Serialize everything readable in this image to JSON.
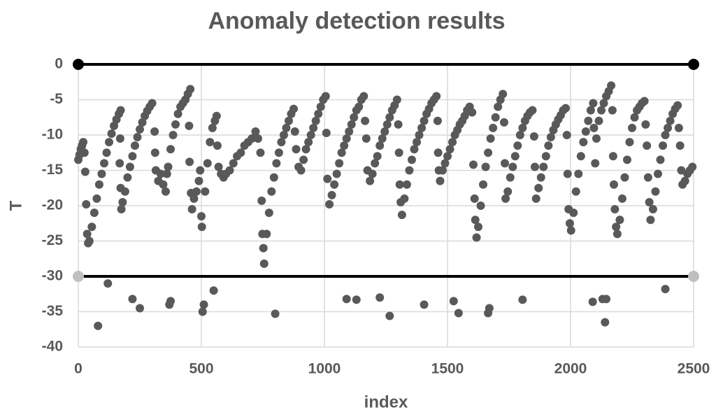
{
  "chart_data": {
    "type": "scatter",
    "title": "Anomaly detection results",
    "x_label": "index",
    "y_label": "T",
    "xlim": [
      0,
      2500
    ],
    "xticks": [
      0,
      500,
      1000,
      1500,
      2000,
      2500
    ],
    "ylim": [
      -40,
      0
    ],
    "yticks": [
      0,
      -5,
      -10,
      -15,
      -20,
      -25,
      -30,
      -35,
      -40
    ],
    "grid": true,
    "series": [
      {
        "color": "#595959",
        "mode": "markers",
        "x": [
          0,
          5,
          10,
          15,
          20,
          25,
          28,
          32,
          36,
          40,
          45,
          55,
          65,
          75,
          85,
          95,
          105,
          115,
          125,
          135,
          145,
          155,
          165,
          172,
          170,
          168,
          172,
          175,
          180,
          190,
          200,
          210,
          220,
          230,
          240,
          250,
          260,
          270,
          280,
          290,
          300,
          310,
          312,
          315,
          325,
          335,
          345,
          355,
          360,
          365,
          375,
          385,
          395,
          405,
          415,
          425,
          435,
          445,
          455,
          450,
          452,
          458,
          462,
          470,
          480,
          490,
          495,
          500,
          502,
          515,
          525,
          535,
          545,
          555,
          562,
          565,
          570,
          580,
          590,
          600,
          615,
          630,
          645,
          660,
          675,
          690,
          705,
          720,
          730,
          740,
          745,
          748,
          752,
          755,
          765,
          775,
          785,
          795,
          805,
          815,
          825,
          835,
          845,
          855,
          865,
          875,
          880,
          885,
          895,
          905,
          915,
          925,
          935,
          945,
          955,
          965,
          975,
          985,
          995,
          1005,
          1008,
          1012,
          1020,
          1030,
          1040,
          1050,
          1060,
          1070,
          1080,
          1090,
          1100,
          1110,
          1120,
          1130,
          1140,
          1150,
          1160,
          1165,
          1170,
          1175,
          1185,
          1195,
          1205,
          1215,
          1225,
          1235,
          1245,
          1255,
          1265,
          1275,
          1285,
          1295,
          1300,
          1303,
          1306,
          1310,
          1315,
          1325,
          1335,
          1345,
          1355,
          1365,
          1375,
          1385,
          1395,
          1405,
          1415,
          1425,
          1435,
          1445,
          1455,
          1460,
          1462,
          1465,
          1470,
          1480,
          1490,
          1500,
          1510,
          1520,
          1530,
          1540,
          1550,
          1560,
          1570,
          1580,
          1590,
          1600,
          1605,
          1610,
          1613,
          1618,
          1625,
          1635,
          1645,
          1655,
          1665,
          1675,
          1685,
          1695,
          1705,
          1715,
          1725,
          1730,
          1733,
          1736,
          1745,
          1755,
          1765,
          1775,
          1785,
          1795,
          1805,
          1815,
          1825,
          1835,
          1845,
          1852,
          1855,
          1860,
          1870,
          1880,
          1890,
          1900,
          1910,
          1920,
          1930,
          1940,
          1950,
          1960,
          1970,
          1980,
          1985,
          1988,
          1992,
          1997,
          2002,
          2012,
          2022,
          2032,
          2042,
          2052,
          2062,
          2072,
          2082,
          2092,
          2095,
          2100,
          2105,
          2115,
          2125,
          2135,
          2145,
          2155,
          2165,
          2170,
          2173,
          2176,
          2180,
          2185,
          2190,
          2200,
          2210,
          2220,
          2230,
          2240,
          2250,
          2260,
          2270,
          2280,
          2290,
          2300,
          2305,
          2310,
          2315,
          2320,
          2325,
          2335,
          2345,
          2355,
          2365,
          2375,
          2385,
          2395,
          2405,
          2415,
          2425,
          2435,
          2440,
          2445,
          2450,
          2455,
          2465,
          2475,
          2485,
          2495,
          80,
          120,
          220,
          250,
          370,
          375,
          505,
          510,
          550,
          800,
          1090,
          1130,
          1225,
          1265,
          1405,
          1525,
          1545,
          1665,
          1670,
          1805,
          2090,
          2130,
          2140,
          2145,
          2385
        ],
        "values": [
          -13.5,
          -12.8,
          -12,
          -11.5,
          -11,
          -12.5,
          -15.2,
          -19.8,
          -24,
          -25.3,
          -25,
          -23,
          -21,
          -19,
          -17,
          -15.5,
          -14,
          -12.5,
          -11,
          -9.8,
          -8.7,
          -7.8,
          -7,
          -6.5,
          -10.5,
          -14,
          -17.5,
          -20.5,
          -19.5,
          -18,
          -16,
          -14.5,
          -13,
          -11.5,
          -10.3,
          -9.2,
          -8.2,
          -7.3,
          -6.6,
          -6,
          -5.5,
          -9.5,
          -12.5,
          -15,
          -16.5,
          -15.5,
          -17,
          -18,
          -15.5,
          -14.5,
          -12,
          -10,
          -8.5,
          -7,
          -6,
          -5.5,
          -5,
          -4.2,
          -3.5,
          -8.7,
          -13.8,
          -18.2,
          -20.5,
          -19,
          -18,
          -16.5,
          -15,
          -21.5,
          -23,
          -18,
          -14,
          -11,
          -9,
          -8,
          -7.3,
          -11.5,
          -14.5,
          -15.5,
          -16,
          -15.5,
          -15,
          -14,
          -13,
          -12.5,
          -11.5,
          -11,
          -10.5,
          -9.5,
          -10.5,
          -12.5,
          -19.3,
          -24,
          -26,
          -28.2,
          -24,
          -21,
          -18,
          -16,
          -14,
          -12.5,
          -11,
          -10,
          -9,
          -8,
          -7,
          -6.3,
          -9.5,
          -12,
          -14.5,
          -15,
          -13.5,
          -12,
          -11,
          -10,
          -9,
          -8,
          -7,
          -6,
          -5,
          -4.5,
          -9.7,
          -16.2,
          -19.8,
          -18.5,
          -17,
          -15.5,
          -14,
          -12.5,
          -11.5,
          -10.5,
          -9.5,
          -8.5,
          -7.5,
          -6.5,
          -6,
          -5,
          -4.5,
          -8,
          -10.5,
          -15,
          -16.5,
          -15.5,
          -14,
          -13,
          -11.5,
          -10.5,
          -9.5,
          -8.5,
          -7.5,
          -6.5,
          -5.8,
          -5,
          -8.5,
          -12.5,
          -17,
          -19.5,
          -21.3,
          -19,
          -17,
          -15,
          -13.5,
          -12,
          -11,
          -10,
          -9,
          -8,
          -7,
          -6.3,
          -5.5,
          -5,
          -4.5,
          -8,
          -12.5,
          -15,
          -16.5,
          -15,
          -14,
          -13,
          -12,
          -11,
          -10,
          -9.3,
          -8.5,
          -8,
          -7.3,
          -6.5,
          -6,
          -6.8,
          -14.2,
          -19,
          -22,
          -24.5,
          -23,
          -20,
          -17,
          -14.5,
          -12.5,
          -10.5,
          -9,
          -7.5,
          -6,
          -5,
          -4.2,
          -8.2,
          -14,
          -19,
          -18,
          -16,
          -14.5,
          -13,
          -11.5,
          -10,
          -9,
          -8,
          -7.3,
          -6.8,
          -6.5,
          -10.2,
          -14.5,
          -19,
          -17.5,
          -16,
          -14.5,
          -13,
          -11.5,
          -10.3,
          -9.3,
          -8.5,
          -7.8,
          -7.2,
          -6.5,
          -6.2,
          -10,
          -15.5,
          -20.5,
          -22.5,
          -23.5,
          -21,
          -18,
          -15.5,
          -13,
          -11,
          -9.5,
          -8,
          -6.5,
          -5.5,
          -9,
          -14,
          -10.5,
          -8,
          -6.5,
          -5.5,
          -4.5,
          -3.8,
          -3,
          -6.5,
          -13,
          -17,
          -20.5,
          -23,
          -24,
          -22,
          -19,
          -16,
          -13.5,
          -11,
          -9,
          -7.5,
          -6.5,
          -6,
          -5.5,
          -5.2,
          -8.5,
          -11.5,
          -16,
          -19.5,
          -22,
          -20.5,
          -18,
          -15.5,
          -13.5,
          -11.5,
          -10,
          -9,
          -8,
          -7,
          -6.3,
          -5.8,
          -9,
          -11.5,
          -15,
          -17,
          -16.5,
          -15.5,
          -15,
          -14.5,
          -37,
          -31,
          -33.2,
          -34.5,
          -34,
          -33.5,
          -35,
          -34,
          -32,
          -35.3,
          -33.2,
          -33.3,
          -33,
          -35.6,
          -34,
          -33.5,
          -35.2,
          -35.2,
          -34.5,
          -33.3,
          -33.6,
          -33.2,
          -36.5,
          -33.2,
          -31.8
        ]
      },
      {
        "color": "#000000",
        "marker_color": "#000000",
        "mode": "line",
        "x": [
          0,
          2500
        ],
        "values": [
          0,
          0
        ]
      },
      {
        "color": "#000000",
        "marker_color": "#bfbfbf",
        "mode": "line",
        "x": [
          0,
          2500
        ],
        "values": [
          -30,
          -30
        ]
      }
    ]
  }
}
